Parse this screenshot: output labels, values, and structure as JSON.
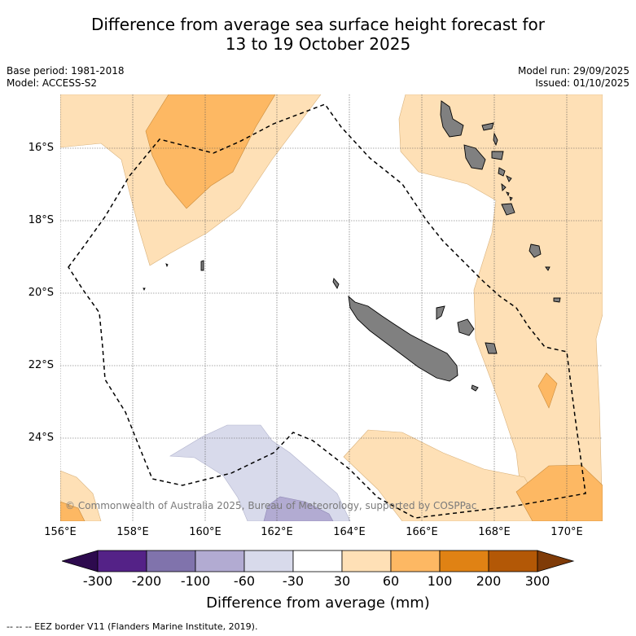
{
  "title_line1": "Difference from average sea surface height forecast for",
  "title_line2": "13 to 19 October 2025",
  "meta": {
    "base_period": "Base period: 1981-2018",
    "model": "Model: ACCESS-S2",
    "model_run": "Model run: 29/09/2025",
    "issued": "Issued: 01/10/2025"
  },
  "copyright": "© Commonwealth of Australia 2025, Bureau of Meteorology, supported by COSPPac",
  "lat_labels": [
    "16°S",
    "18°S",
    "20°S",
    "22°S",
    "24°S"
  ],
  "lon_labels": [
    "156°E",
    "158°E",
    "160°E",
    "162°E",
    "164°E",
    "166°E",
    "168°E",
    "170°E"
  ],
  "colorbar": {
    "ticks": [
      "-300",
      "-200",
      "-100",
      "-60",
      "-30",
      "30",
      "60",
      "100",
      "200",
      "300"
    ],
    "colors": [
      "#2d0a4e",
      "#542287",
      "#8073ac",
      "#b2abd2",
      "#d8daeb",
      "#ffffff",
      "#fee0b6",
      "#fdb863",
      "#e08214",
      "#b35806",
      "#7f3b08"
    ],
    "label": "Difference from average (mm)"
  },
  "colors": {
    "light_orange": "#fee0b6",
    "orange": "#fdb863",
    "light_purple": "#d8daeb",
    "purple": "#b2abd2",
    "land": "#808080"
  },
  "footnote": "--  --  -- EEZ border V11 (Flanders Marine Institute, 2019)."
}
